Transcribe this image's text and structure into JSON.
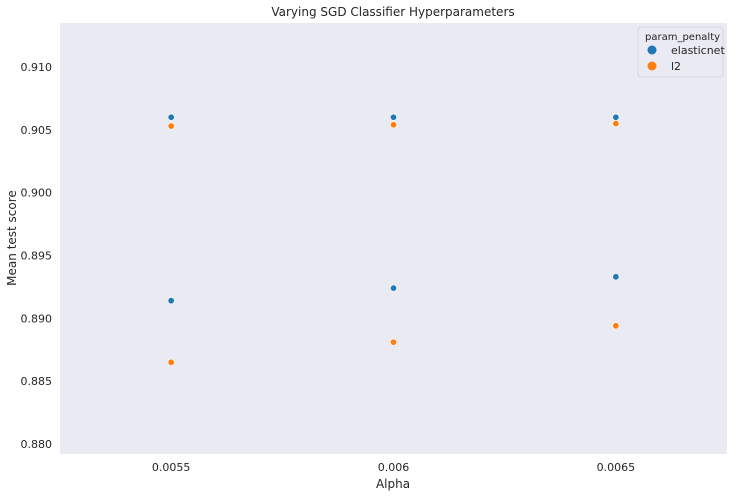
{
  "chart_data": {
    "type": "scatter",
    "title": "Varying SGD Classifier Hyperparameters",
    "xlabel": "Alpha",
    "ylabel": "Mean test score",
    "categories": [
      "0.0055",
      "0.006",
      "0.0065"
    ],
    "ylim": [
      0.8792,
      0.9135
    ],
    "yticks": [
      "0.880",
      "0.885",
      "0.890",
      "0.895",
      "0.900",
      "0.905",
      "0.910"
    ],
    "grid": false,
    "legend": {
      "title": "param_penalty",
      "placement": "top-right"
    },
    "series": [
      {
        "name": "elasticnet",
        "color": "#1f77b4",
        "points": [
          {
            "x": "0.0055",
            "y": 0.906
          },
          {
            "x": "0.0055",
            "y": 0.8914
          },
          {
            "x": "0.006",
            "y": 0.906
          },
          {
            "x": "0.006",
            "y": 0.8924
          },
          {
            "x": "0.0065",
            "y": 0.906
          },
          {
            "x": "0.0065",
            "y": 0.8933
          }
        ]
      },
      {
        "name": "l2",
        "color": "#ff7f0e",
        "points": [
          {
            "x": "0.0055",
            "y": 0.9053
          },
          {
            "x": "0.0055",
            "y": 0.8865
          },
          {
            "x": "0.006",
            "y": 0.9054
          },
          {
            "x": "0.006",
            "y": 0.8881
          },
          {
            "x": "0.0065",
            "y": 0.9055
          },
          {
            "x": "0.0065",
            "y": 0.8894
          }
        ]
      }
    ],
    "background_color": "#eaeaf2"
  }
}
